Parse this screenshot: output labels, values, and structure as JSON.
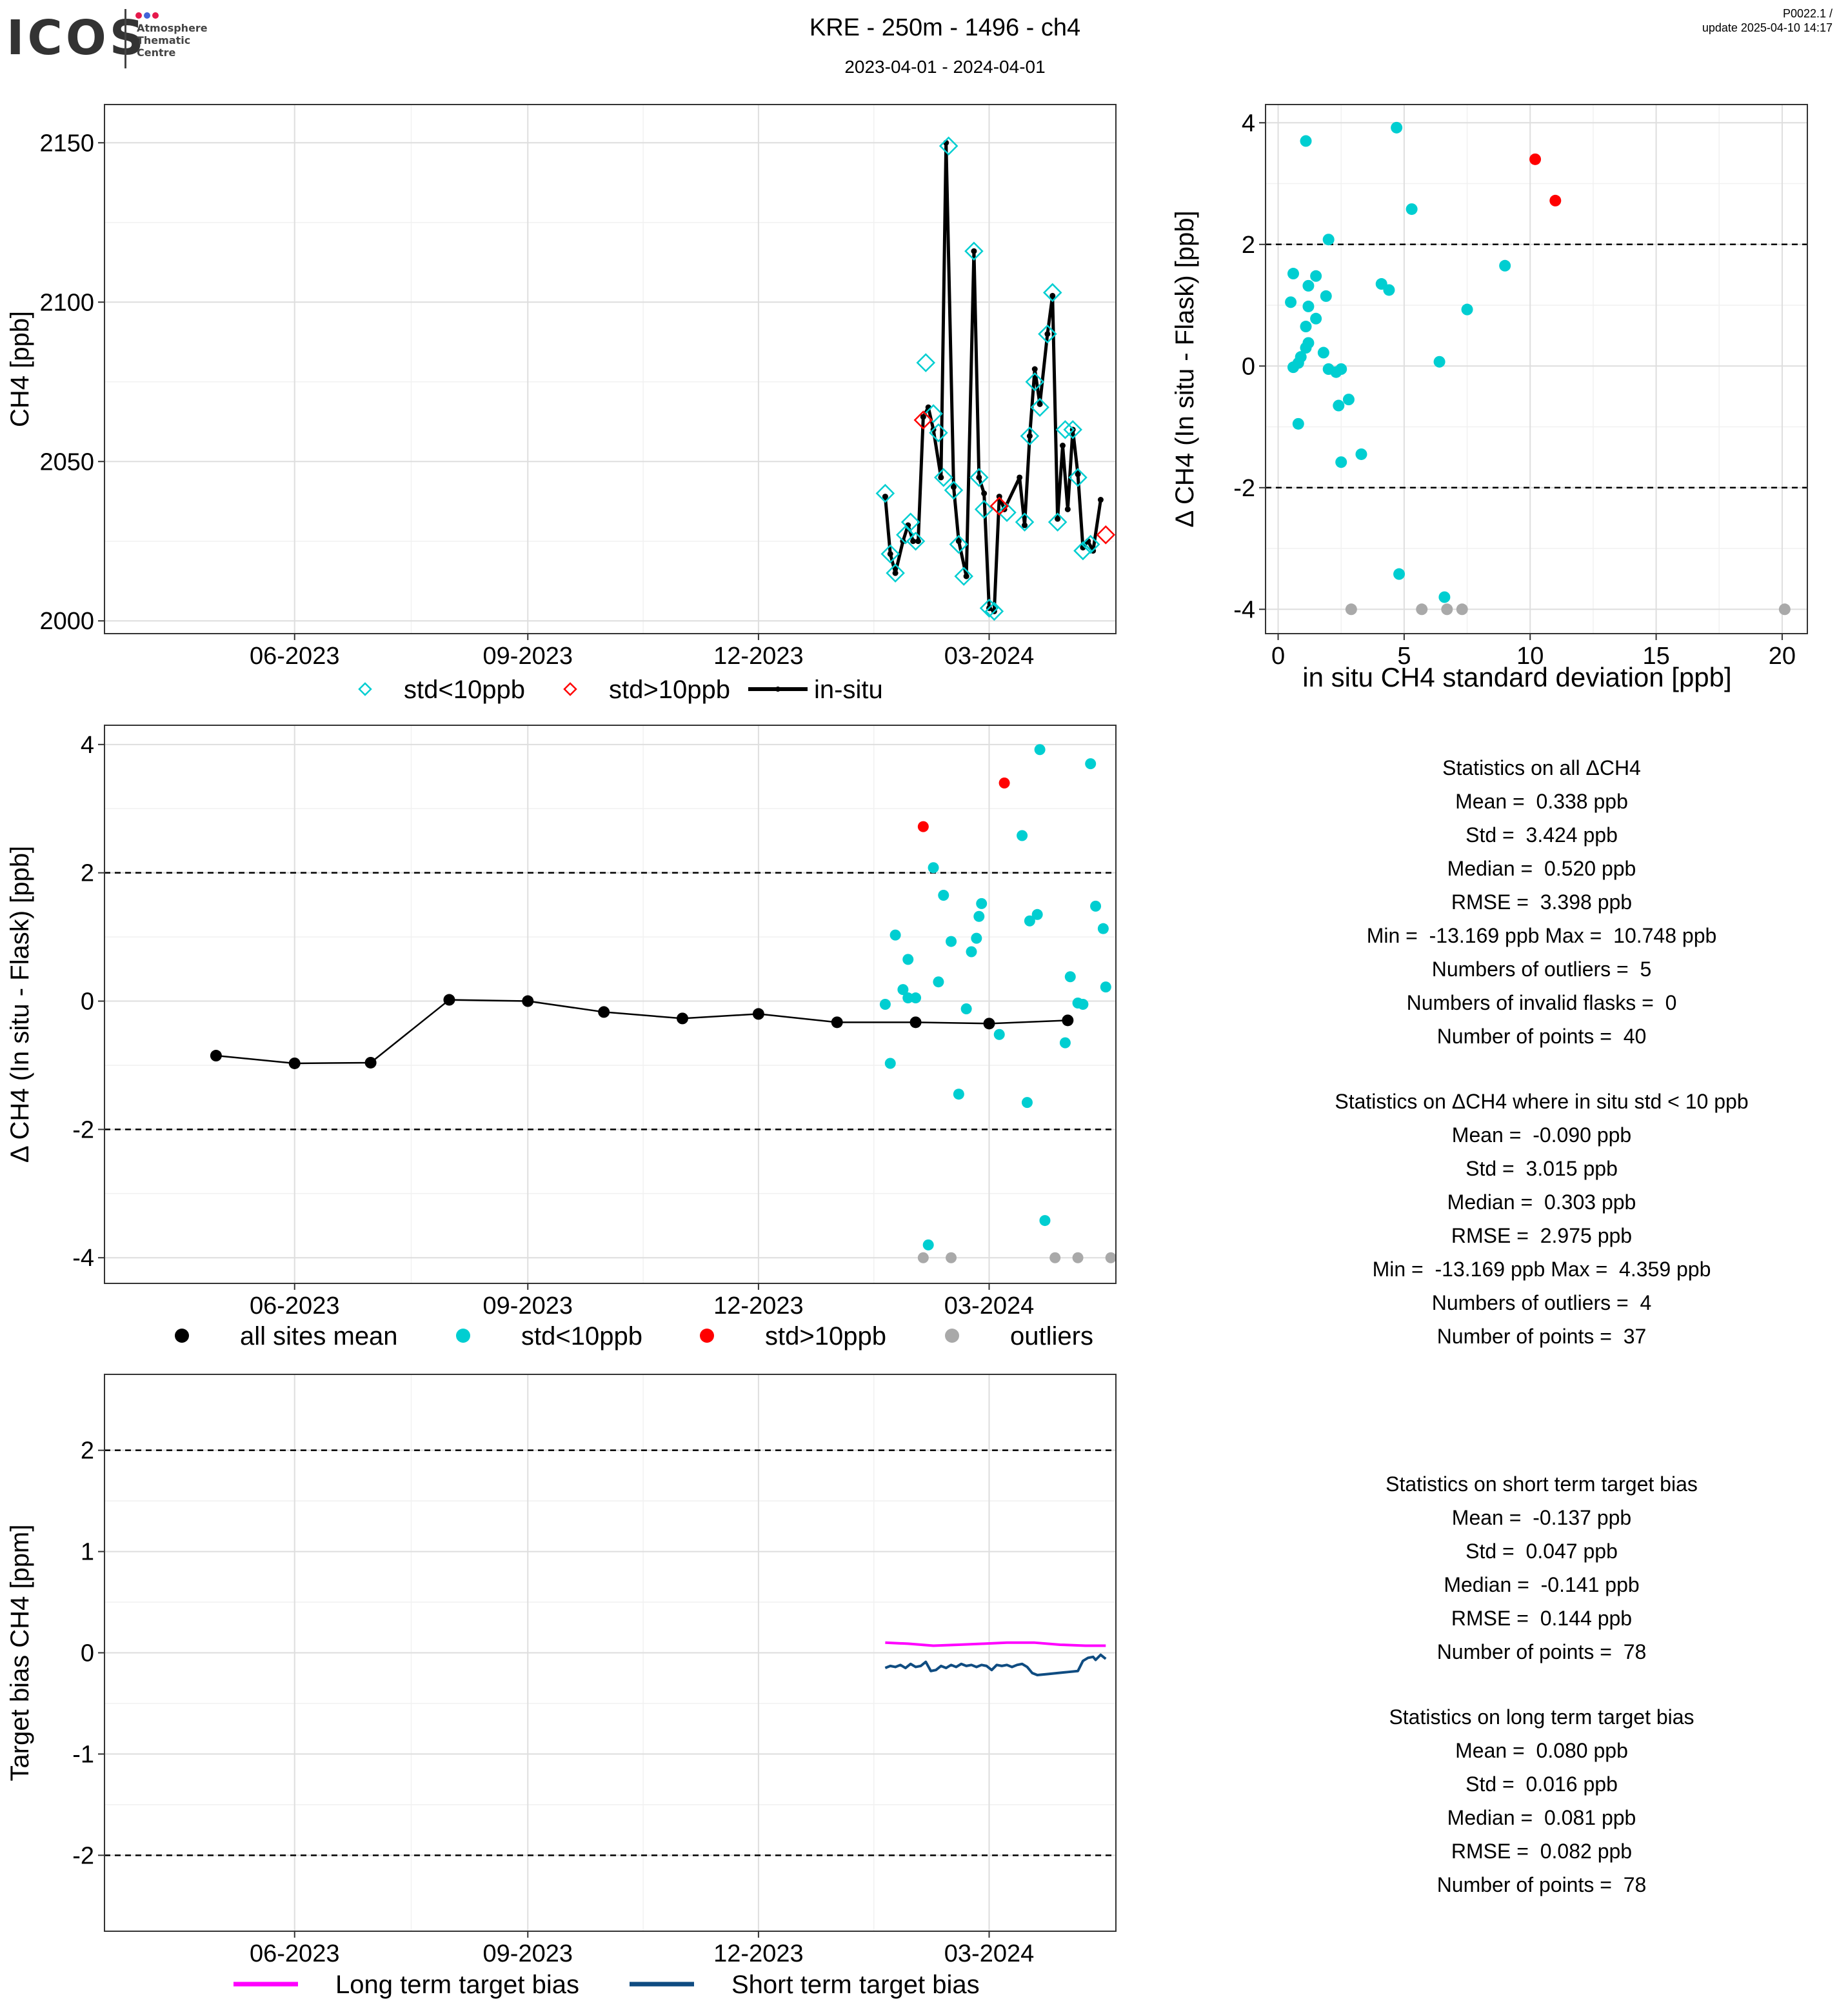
{
  "header": {
    "logo_text": "ICOS",
    "logo_subtitle": [
      "Atmosphere",
      "Thematic",
      "Centre"
    ],
    "logo_dot_colors": [
      "#e6194b",
      "#4363d8",
      "#e6194b"
    ],
    "title": "KRE - 250m - 1496 - ch4",
    "subtitle": "2023-04-01 - 2024-04-01",
    "version": "P0022.1 /",
    "update": "update  2025-04-10 14:17"
  },
  "colors": {
    "std_lt10": "#00CED1",
    "std_gt10": "#FF0000",
    "outliers": "#A9A9A9",
    "insitu": "#000000",
    "long_term": "#FF00FF",
    "short_term": "#0F4C81"
  },
  "chart_data": [
    {
      "id": "ch4-timeseries",
      "type": "line",
      "xlabel": "",
      "ylabel": "CH4 [ppb]",
      "xlim": [
        "2023-03-18",
        "2024-04-20"
      ],
      "ylim": [
        1996,
        2162
      ],
      "xticks": [
        {
          "date": "2023-06-01",
          "label": "06-2023"
        },
        {
          "date": "2023-09-01",
          "label": "09-2023"
        },
        {
          "date": "2023-12-01",
          "label": "12-2023"
        },
        {
          "date": "2024-03-01",
          "label": "03-2024"
        }
      ],
      "yticks": [
        2000,
        2050,
        2100,
        2150
      ],
      "grid": true,
      "legend": [
        "std<10ppb",
        "std>10ppb",
        "in-situ"
      ],
      "insitu": [
        [
          "2024-01-20",
          2039
        ],
        [
          "2024-01-22",
          2021
        ],
        [
          "2024-01-24",
          2015
        ],
        [
          "2024-01-27",
          2025
        ],
        [
          "2024-01-29",
          2030
        ],
        [
          "2024-01-31",
          2025
        ],
        [
          "2024-02-02",
          2025
        ],
        [
          "2024-02-04",
          2064
        ],
        [
          "2024-02-06",
          2067
        ],
        [
          "2024-02-08",
          2060
        ],
        [
          "2024-02-11",
          2045
        ],
        [
          "2024-02-13",
          2150
        ],
        [
          "2024-02-16",
          2042
        ],
        [
          "2024-02-18",
          2025
        ],
        [
          "2024-02-21",
          2014
        ],
        [
          "2024-02-24",
          2116
        ],
        [
          "2024-02-26",
          2045
        ],
        [
          "2024-02-28",
          2040
        ],
        [
          "2024-03-01",
          2004
        ],
        [
          "2024-03-03",
          2003
        ],
        [
          "2024-03-05",
          2039
        ],
        [
          "2024-03-07",
          2035
        ],
        [
          "2024-03-13",
          2045
        ],
        [
          "2024-03-15",
          2030
        ],
        [
          "2024-03-17",
          2058
        ],
        [
          "2024-03-19",
          2079
        ],
        [
          "2024-03-21",
          2068
        ],
        [
          "2024-03-24",
          2090
        ],
        [
          "2024-03-26",
          2102
        ],
        [
          "2024-03-28",
          2032
        ],
        [
          "2024-03-30",
          2055
        ],
        [
          "2024-04-01",
          2035
        ],
        [
          "2024-04-03",
          2060
        ],
        [
          "2024-04-05",
          2046
        ],
        [
          "2024-04-07",
          2023
        ],
        [
          "2024-04-09",
          2025
        ],
        [
          "2024-04-11",
          2022
        ],
        [
          "2024-04-14",
          2038
        ]
      ],
      "flask_std_lt10": [
        [
          "2024-01-20",
          2040
        ],
        [
          "2024-01-22",
          2021
        ],
        [
          "2024-01-24",
          2015
        ],
        [
          "2024-01-28",
          2027
        ],
        [
          "2024-01-30",
          2031
        ],
        [
          "2024-02-01",
          2025
        ],
        [
          "2024-02-05",
          2081
        ],
        [
          "2024-02-08",
          2065
        ],
        [
          "2024-02-10",
          2059
        ],
        [
          "2024-02-12",
          2045
        ],
        [
          "2024-02-14",
          2149
        ],
        [
          "2024-02-16",
          2041
        ],
        [
          "2024-02-18",
          2024
        ],
        [
          "2024-02-20",
          2014
        ],
        [
          "2024-02-24",
          2116
        ],
        [
          "2024-02-26",
          2045
        ],
        [
          "2024-02-28",
          2035
        ],
        [
          "2024-03-01",
          2004
        ],
        [
          "2024-03-03",
          2003
        ],
        [
          "2024-03-08",
          2034
        ],
        [
          "2024-03-15",
          2031
        ],
        [
          "2024-03-17",
          2058
        ],
        [
          "2024-03-19",
          2075
        ],
        [
          "2024-03-21",
          2067
        ],
        [
          "2024-03-24",
          2090
        ],
        [
          "2024-03-26",
          2103
        ],
        [
          "2024-03-28",
          2031
        ],
        [
          "2024-03-31",
          2060
        ],
        [
          "2024-04-03",
          2060
        ],
        [
          "2024-04-05",
          2045
        ],
        [
          "2024-04-07",
          2022
        ],
        [
          "2024-04-10",
          2024
        ]
      ],
      "flask_std_gt10": [
        [
          "2024-02-04",
          2063
        ],
        [
          "2024-03-05",
          2036
        ],
        [
          "2024-04-16",
          2027
        ]
      ]
    },
    {
      "id": "delta-vs-std-scatter",
      "type": "scatter",
      "xlabel": "in situ CH4 standard deviation [ppb]",
      "ylabel": "Δ CH4 (In situ - Flask) [ppb]",
      "xlim": [
        -0.5,
        21
      ],
      "ylim": [
        -4.4,
        4.3
      ],
      "xticks": [
        0,
        5,
        10,
        15,
        20
      ],
      "yticks": [
        -4,
        -2,
        0,
        2,
        4
      ],
      "hlines": [
        2,
        -2
      ],
      "std_lt10": [
        [
          1.1,
          3.7
        ],
        [
          4.7,
          3.92
        ],
        [
          5.3,
          2.58
        ],
        [
          2.0,
          2.08
        ],
        [
          9.0,
          1.65
        ],
        [
          0.6,
          1.52
        ],
        [
          1.5,
          1.48
        ],
        [
          1.2,
          1.32
        ],
        [
          4.1,
          1.35
        ],
        [
          4.4,
          1.25
        ],
        [
          1.9,
          1.15
        ],
        [
          0.5,
          1.05
        ],
        [
          1.2,
          0.98
        ],
        [
          7.5,
          0.93
        ],
        [
          1.5,
          0.78
        ],
        [
          1.1,
          0.65
        ],
        [
          1.2,
          0.38
        ],
        [
          1.1,
          0.3
        ],
        [
          0.9,
          0.15
        ],
        [
          1.8,
          0.22
        ],
        [
          0.8,
          0.05
        ],
        [
          6.4,
          0.07
        ],
        [
          0.6,
          -0.02
        ],
        [
          2.0,
          -0.05
        ],
        [
          2.3,
          -0.1
        ],
        [
          2.5,
          -0.05
        ],
        [
          2.8,
          -0.55
        ],
        [
          2.4,
          -0.65
        ],
        [
          0.8,
          -0.95
        ],
        [
          3.3,
          -1.45
        ],
        [
          2.5,
          -1.58
        ],
        [
          4.8,
          -3.42
        ],
        [
          6.6,
          -3.8
        ]
      ],
      "std_gt10": [
        [
          10.2,
          3.4
        ],
        [
          11.0,
          2.72
        ]
      ],
      "outliers": [
        [
          2.9,
          -4.0
        ],
        [
          5.7,
          -4.0
        ],
        [
          6.7,
          -4.0
        ],
        [
          7.3,
          -4.0
        ],
        [
          20.1,
          -4.0
        ]
      ]
    },
    {
      "id": "delta-timeseries",
      "type": "scatter",
      "xlabel": "",
      "ylabel": "Δ CH4 (In situ - Flask) [ppb]",
      "xlim": [
        "2023-03-18",
        "2024-04-20"
      ],
      "ylim": [
        -4.4,
        4.3
      ],
      "xticks": [
        {
          "date": "2023-06-01",
          "label": "06-2023"
        },
        {
          "date": "2023-09-01",
          "label": "09-2023"
        },
        {
          "date": "2023-12-01",
          "label": "12-2023"
        },
        {
          "date": "2024-03-01",
          "label": "03-2024"
        }
      ],
      "yticks": [
        -4,
        -2,
        0,
        2,
        4
      ],
      "hlines": [
        2,
        -2
      ],
      "legend": [
        "all sites mean",
        "std<10ppb",
        "std>10ppb",
        "outliers"
      ],
      "all_sites_mean": [
        [
          "2023-05-01",
          -0.85
        ],
        [
          "2023-06-01",
          -0.97
        ],
        [
          "2023-07-01",
          -0.96
        ],
        [
          "2023-08-01",
          0.02
        ],
        [
          "2023-09-01",
          0.0
        ],
        [
          "2023-10-01",
          -0.17
        ],
        [
          "2023-11-01",
          -0.27
        ],
        [
          "2023-12-01",
          -0.2
        ],
        [
          "2024-01-01",
          -0.33
        ],
        [
          "2024-02-01",
          -0.33
        ],
        [
          "2024-03-01",
          -0.35
        ],
        [
          "2024-04-01",
          -0.3
        ]
      ],
      "std_lt10": [
        [
          "2024-01-20",
          -0.05
        ],
        [
          "2024-01-22",
          -0.97
        ],
        [
          "2024-01-24",
          1.03
        ],
        [
          "2024-01-27",
          0.18
        ],
        [
          "2024-01-29",
          0.65
        ],
        [
          "2024-01-29",
          0.05
        ],
        [
          "2024-02-01",
          0.05
        ],
        [
          "2024-02-06",
          -3.8
        ],
        [
          "2024-02-08",
          2.08
        ],
        [
          "2024-02-10",
          0.3
        ],
        [
          "2024-02-12",
          1.65
        ],
        [
          "2024-02-15",
          0.93
        ],
        [
          "2024-02-18",
          -1.45
        ],
        [
          "2024-02-21",
          -0.12
        ],
        [
          "2024-02-23",
          0.77
        ],
        [
          "2024-02-25",
          0.98
        ],
        [
          "2024-02-26",
          1.32
        ],
        [
          "2024-02-27",
          1.52
        ],
        [
          "2024-03-05",
          -0.52
        ],
        [
          "2024-03-14",
          2.58
        ],
        [
          "2024-03-16",
          -1.58
        ],
        [
          "2024-03-17",
          1.25
        ],
        [
          "2024-03-21",
          3.92
        ],
        [
          "2024-03-20",
          1.35
        ],
        [
          "2024-03-23",
          -3.42
        ],
        [
          "2024-03-31",
          -0.65
        ],
        [
          "2024-04-02",
          0.38
        ],
        [
          "2024-04-05",
          -0.03
        ],
        [
          "2024-04-07",
          -0.05
        ],
        [
          "2024-04-10",
          3.7
        ],
        [
          "2024-04-12",
          1.48
        ],
        [
          "2024-04-15",
          1.13
        ],
        [
          "2024-04-16",
          0.22
        ]
      ],
      "std_gt10": [
        [
          "2024-02-04",
          2.72
        ],
        [
          "2024-03-07",
          3.4
        ]
      ],
      "outliers": [
        [
          "2024-02-04",
          -4.0
        ],
        [
          "2024-02-15",
          -4.0
        ],
        [
          "2024-03-27",
          -4.0
        ],
        [
          "2024-04-05",
          -4.0
        ],
        [
          "2024-04-18",
          -4.0
        ]
      ]
    },
    {
      "id": "target-bias",
      "type": "line",
      "xlabel": "",
      "ylabel": "Target bias CH4 [ppm]",
      "xlim": [
        "2023-03-18",
        "2024-04-20"
      ],
      "ylim": [
        -2.75,
        2.75
      ],
      "xticks": [
        {
          "date": "2023-06-01",
          "label": "06-2023"
        },
        {
          "date": "2023-09-01",
          "label": "09-2023"
        },
        {
          "date": "2023-12-01",
          "label": "12-2023"
        },
        {
          "date": "2024-03-01",
          "label": "03-2024"
        }
      ],
      "yticks": [
        -2,
        -1,
        0,
        1,
        2
      ],
      "hlines": [
        2,
        -2
      ],
      "legend": [
        "Long term target bias",
        "Short term target bias"
      ],
      "long_term": [
        [
          "2024-01-20",
          0.1
        ],
        [
          "2024-01-29",
          0.09
        ],
        [
          "2024-02-08",
          0.07
        ],
        [
          "2024-02-18",
          0.08
        ],
        [
          "2024-02-28",
          0.09
        ],
        [
          "2024-03-08",
          0.1
        ],
        [
          "2024-03-19",
          0.1
        ],
        [
          "2024-03-29",
          0.08
        ],
        [
          "2024-04-08",
          0.07
        ],
        [
          "2024-04-16",
          0.07
        ]
      ],
      "short_term": [
        [
          "2024-01-20",
          -0.15
        ],
        [
          "2024-01-22",
          -0.13
        ],
        [
          "2024-01-24",
          -0.14
        ],
        [
          "2024-01-26",
          -0.12
        ],
        [
          "2024-01-28",
          -0.15
        ],
        [
          "2024-01-30",
          -0.11
        ],
        [
          "2024-02-01",
          -0.14
        ],
        [
          "2024-02-03",
          -0.13
        ],
        [
          "2024-02-05",
          -0.09
        ],
        [
          "2024-02-07",
          -0.18
        ],
        [
          "2024-02-09",
          -0.17
        ],
        [
          "2024-02-11",
          -0.13
        ],
        [
          "2024-02-13",
          -0.15
        ],
        [
          "2024-02-15",
          -0.12
        ],
        [
          "2024-02-17",
          -0.14
        ],
        [
          "2024-02-19",
          -0.11
        ],
        [
          "2024-02-21",
          -0.13
        ],
        [
          "2024-02-23",
          -0.12
        ],
        [
          "2024-02-25",
          -0.14
        ],
        [
          "2024-02-27",
          -0.12
        ],
        [
          "2024-02-29",
          -0.13
        ],
        [
          "2024-03-02",
          -0.17
        ],
        [
          "2024-03-04",
          -0.12
        ],
        [
          "2024-03-06",
          -0.13
        ],
        [
          "2024-03-08",
          -0.12
        ],
        [
          "2024-03-10",
          -0.14
        ],
        [
          "2024-03-12",
          -0.12
        ],
        [
          "2024-03-14",
          -0.11
        ],
        [
          "2024-03-16",
          -0.14
        ],
        [
          "2024-03-18",
          -0.2
        ],
        [
          "2024-03-20",
          -0.22
        ],
        [
          "2024-03-24",
          -0.21
        ],
        [
          "2024-03-28",
          -0.2
        ],
        [
          "2024-04-01",
          -0.19
        ],
        [
          "2024-04-05",
          -0.18
        ],
        [
          "2024-04-07",
          -0.08
        ],
        [
          "2024-04-09",
          -0.05
        ],
        [
          "2024-04-11",
          -0.04
        ],
        [
          "2024-04-12",
          -0.07
        ],
        [
          "2024-04-14",
          -0.02
        ],
        [
          "2024-04-16",
          -0.06
        ]
      ]
    }
  ],
  "stats": {
    "all_delta": {
      "title": "Statistics on all ΔCH4",
      "mean": "Mean =  0.338 ppb",
      "std": "Std =  3.424 ppb",
      "median": "Median =  0.520 ppb",
      "rmse": "RMSE =  3.398 ppb",
      "minmax": "Min =  -13.169 ppb Max =  10.748 ppb",
      "outliers": "Numbers of outliers =  5",
      "invalid": "Numbers of invalid flasks =  0",
      "points": "Number of points =  40"
    },
    "std_lt10_delta": {
      "title": "Statistics on ΔCH4 where in situ std < 10 ppb",
      "mean": "Mean =  -0.090 ppb",
      "std": "Std =  3.015 ppb",
      "median": "Median =  0.303 ppb",
      "rmse": "RMSE =  2.975 ppb",
      "minmax": "Min =  -13.169 ppb Max =  4.359 ppb",
      "outliers": "Numbers of outliers =  4",
      "points": "Number of points =  37"
    },
    "short_term": {
      "title": "Statistics on short term target bias",
      "mean": "Mean =  -0.137 ppb",
      "std": "Std =  0.047 ppb",
      "median": "Median =  -0.141 ppb",
      "rmse": "RMSE =  0.144 ppb",
      "points": "Number of points =  78"
    },
    "long_term": {
      "title": "Statistics on long term target bias",
      "mean": "Mean =  0.080 ppb",
      "std": "Std =  0.016 ppb",
      "median": "Median =  0.081 ppb",
      "rmse": "RMSE =  0.082 ppb",
      "points": "Number of points =  78"
    }
  }
}
